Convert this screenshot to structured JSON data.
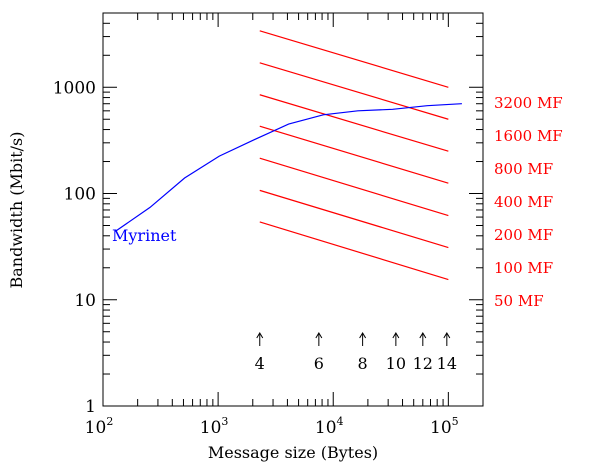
{
  "chart_data": {
    "type": "line",
    "xlabel": "Message size (Bytes)",
    "ylabel": "Bandwidth (Mbit/s)",
    "xscale": "log",
    "yscale": "log",
    "xlim": [
      100,
      200000
    ],
    "ylim": [
      1,
      5000
    ],
    "x_ticks": [
      {
        "value": 100,
        "base": "10",
        "exp": "2"
      },
      {
        "value": 1000,
        "base": "10",
        "exp": "3"
      },
      {
        "value": 10000,
        "base": "10",
        "exp": "4"
      },
      {
        "value": 100000,
        "base": "10",
        "exp": "5"
      }
    ],
    "y_ticks": [
      {
        "value": 1,
        "label": "1"
      },
      {
        "value": 10,
        "label": "10"
      },
      {
        "value": 100,
        "label": "100"
      },
      {
        "value": 1000,
        "label": "1000"
      }
    ],
    "grid": false,
    "series": [
      {
        "name": "Myrinet",
        "color": "#0000ff",
        "x": [
          128,
          256,
          512,
          1024,
          2048,
          4096,
          8192,
          16384,
          32768,
          65536,
          131072
        ],
        "y": [
          44,
          74,
          140,
          225,
          320,
          450,
          550,
          600,
          620,
          670,
          700
        ]
      }
    ],
    "reference_lines": {
      "color": "#ff0000",
      "x": [
        2300,
        100000
      ],
      "lines": [
        {
          "label": "3200 MF",
          "y": [
            3400,
            1000
          ]
        },
        {
          "label": "1600 MF",
          "y": [
            1700,
            500
          ]
        },
        {
          "label": "800 MF",
          "y": [
            850,
            250
          ]
        },
        {
          "label": "400 MF",
          "y": [
            430,
            125
          ]
        },
        {
          "label": "200 MF",
          "y": [
            215,
            62
          ]
        },
        {
          "label": "100 MF",
          "y": [
            107,
            31
          ]
        },
        {
          "label": "50 MF",
          "y": [
            54,
            15.5
          ]
        }
      ]
    },
    "arrow_annotations": [
      {
        "x": 2300,
        "label": "4"
      },
      {
        "x": 7500,
        "label": "6"
      },
      {
        "x": 18000,
        "label": "8"
      },
      {
        "x": 35000,
        "label": "10"
      },
      {
        "x": 60000,
        "label": "12"
      },
      {
        "x": 97000,
        "label": "14"
      }
    ]
  }
}
